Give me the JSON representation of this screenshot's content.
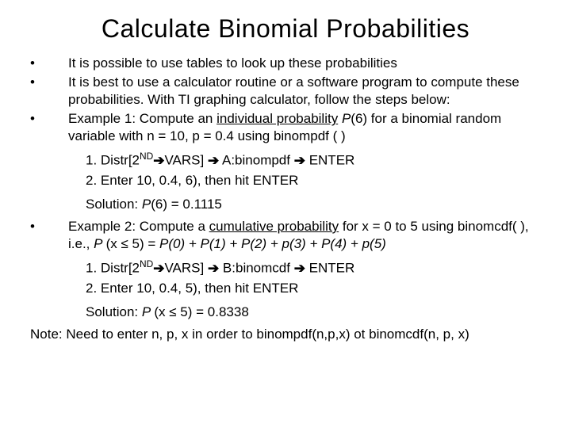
{
  "title": "Calculate Binomial Probabilities",
  "bullets": {
    "b1": "It is possible to use tables to look up these probabilities",
    "b2": "It is best to use a calculator routine or a software program to compute these probabilities.  With TI graphing calculator, follow the steps below:",
    "b3_pre": "Example 1: Compute an ",
    "b3_u": "individual probability",
    "b3_post1": " ",
    "b3_p": "P",
    "b3_post2": "(6) for a binomial random variable with n = 10, p = 0.4 using binompdf ( )",
    "b4_pre": "Example 2: Compute a ",
    "b4_u": "cumulative probability",
    "b4_post1": " for x = 0 to 5 using binomcdf( ), i.e., ",
    "b4_p": "P ",
    "b4_post2": "(x ",
    "b4_post3": " 5) = ",
    "b4_terms": "P(0) + P(1) + P(2) + p(3) + P(4) + p(5)"
  },
  "steps1": {
    "s1_pre": "1.   Distr[2",
    "s1_nd": "ND",
    "s1_arrow1": "➔",
    "s1_vars": "VARS] ",
    "s1_arrow2": "➔",
    "s1_a": " A:binompdf ",
    "s1_arrow3": "➔",
    "s1_enter": " ENTER",
    "s2": "2.   Enter 10, 0.4, 6), then hit ENTER",
    "sol_pre": "Solution: ",
    "sol_p": "P",
    "sol_post": "(6) = 0.1115"
  },
  "steps2": {
    "s1_pre": "1.   Distr[2",
    "s1_nd": "ND",
    "s1_arrow1": "➔",
    "s1_vars": "VARS] ",
    "s1_arrow2": "➔",
    "s1_b": " B:binomcdf ",
    "s1_arrow3": "➔",
    "s1_enter": " ENTER",
    "s2": "2.   Enter 10, 0.4, 5), then hit ENTER",
    "sol_pre": "Solution: ",
    "sol_p": "P ",
    "sol_post1": "(x ",
    "sol_post2": " 5) = 0.8338"
  },
  "note_pre": "Note: ",
  "note_text": "Need to enter n, p, x in order to binompdf(n,p,x) ot binomcdf(n, p, x)",
  "symbols": {
    "le": "≤",
    "bullet": "•"
  }
}
